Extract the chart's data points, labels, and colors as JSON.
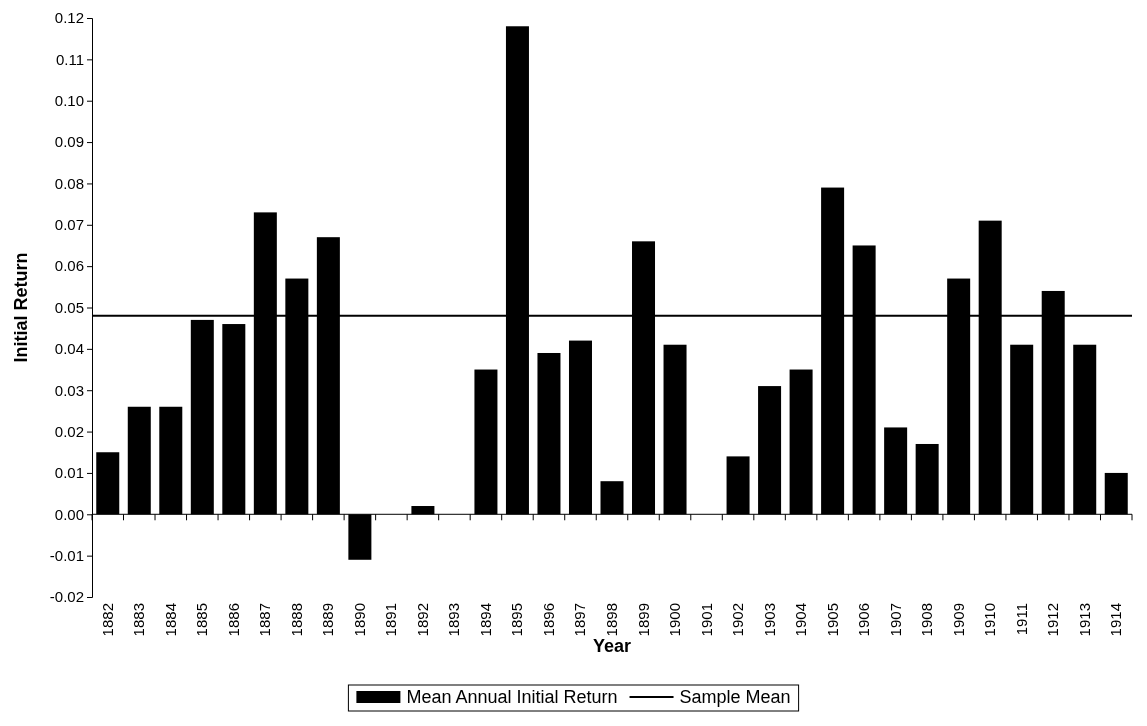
{
  "chart_data": {
    "type": "bar",
    "xlabel": "Year",
    "ylabel": "Initial Return",
    "categories": [
      "1882",
      "1883",
      "1884",
      "1885",
      "1886",
      "1887",
      "1888",
      "1889",
      "1890",
      "1891",
      "1892",
      "1893",
      "1894",
      "1895",
      "1896",
      "1897",
      "1898",
      "1899",
      "1900",
      "1901",
      "1902",
      "1903",
      "1904",
      "1905",
      "1906",
      "1907",
      "1908",
      "1909",
      "1910",
      "1911",
      "1912",
      "1913",
      "1914"
    ],
    "series": [
      {
        "name": "Mean Annual Initial Return",
        "color": "#000000",
        "values": [
          0.015,
          0.026,
          0.026,
          0.047,
          0.046,
          0.073,
          0.057,
          0.067,
          -0.011,
          0,
          0.002,
          0,
          0.035,
          0.118,
          0.039,
          0.042,
          0.008,
          0.066,
          0.041,
          0,
          0.014,
          0.031,
          0.035,
          0.079,
          0.065,
          0.021,
          0.017,
          0.057,
          0.071,
          0.041,
          0.054,
          0.041,
          0.01
        ]
      }
    ],
    "ylim": [
      -0.02,
      0.12
    ],
    "yticks": [
      {
        "value": -0.02,
        "label": "-0.02"
      },
      {
        "value": -0.01,
        "label": "-0.01"
      },
      {
        "value": 0,
        "label": "0.00"
      },
      {
        "value": 0.01,
        "label": "0.01"
      },
      {
        "value": 0.02,
        "label": "0.02"
      },
      {
        "value": 0.03,
        "label": "0.03"
      },
      {
        "value": 0.04,
        "label": "0.04"
      },
      {
        "value": 0.05,
        "label": "0.05"
      },
      {
        "value": 0.06,
        "label": "0.06"
      },
      {
        "value": 0.07,
        "label": "0.07"
      },
      {
        "value": 0.08,
        "label": "0.08"
      },
      {
        "value": 0.09,
        "label": "0.09"
      },
      {
        "value": 0.1,
        "label": "0.10"
      },
      {
        "value": 0.11,
        "label": "0.11"
      },
      {
        "value": 0.12,
        "label": "0.12"
      }
    ],
    "ref_lines": [
      {
        "axis": "y",
        "value": 0.048,
        "label": "Sample Mean",
        "color": "#000000",
        "line_style": "solid"
      }
    ],
    "legend": "bottom"
  }
}
